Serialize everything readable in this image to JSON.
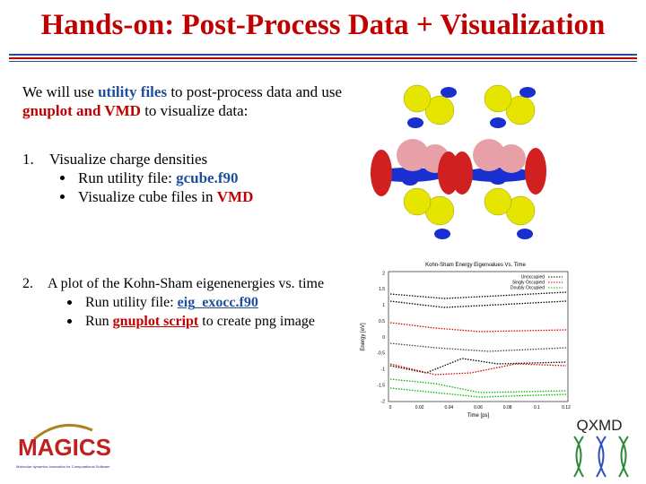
{
  "title": "Hands-on: Post-Process Data + Visualization",
  "intro": [
    "We will use ",
    "utility files",
    " to post-process data and use ",
    "gnuplot and VMD",
    " to visualize data:"
  ],
  "items": [
    {
      "number": "1.",
      "text": "Visualize charge densities",
      "bullets": [
        [
          "Run utility file: ",
          "gcube.f90"
        ],
        [
          "Visualize cube files in ",
          "VMD"
        ]
      ]
    },
    {
      "number": "2.",
      "text": "A plot of the Kohn-Sham eigenenergies vs. time",
      "bullets": [
        [
          "Run utility file: ",
          "eig_exocc.f90"
        ],
        [
          "Run ",
          "gnuplot script",
          " to create png image"
        ]
      ]
    }
  ],
  "plot": {
    "title": "Kohn-Sham Energy Eigenvalues Vs. Time",
    "ylabel": "Energy [eV]",
    "xlabel": "Time [ps]",
    "legend": [
      "Unoccupied",
      "Singly Occupied",
      "Doubly Occupied"
    ],
    "yticks": [
      "2",
      "1.5",
      "1",
      "0.5",
      "0",
      "-0.5",
      "-1",
      "-1.5",
      "-2"
    ],
    "xticks": [
      "0",
      "0.02",
      "0.04",
      "0.06",
      "0.08",
      "0.1",
      "0.12"
    ]
  },
  "logos": {
    "magics": "MAGICS",
    "magics_sub": "Molecular dynamics Innovation for Computational Software",
    "qxmd": "QXMD"
  }
}
